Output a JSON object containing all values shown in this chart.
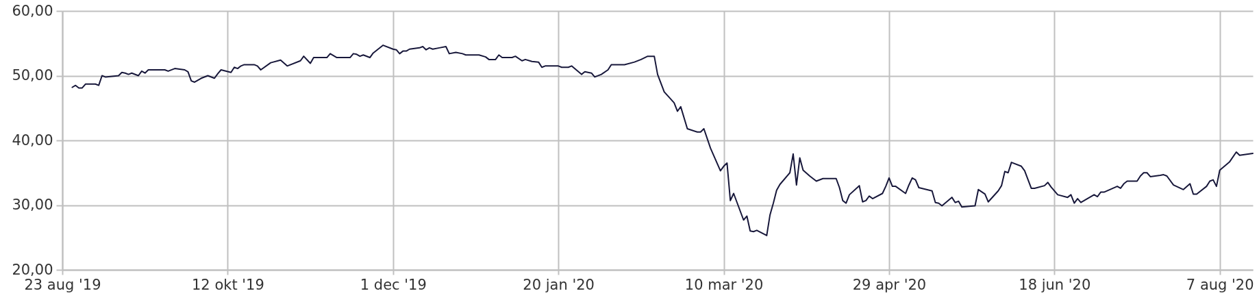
{
  "chart_data": {
    "type": "line",
    "x": [
      "2019-08-26",
      "2019-08-27",
      "2019-08-28",
      "2019-08-29",
      "2019-08-30",
      "2019-09-02",
      "2019-09-03",
      "2019-09-04",
      "2019-09-05",
      "2019-09-09",
      "2019-09-10",
      "2019-09-11",
      "2019-09-12",
      "2019-09-13",
      "2019-09-15",
      "2019-09-16",
      "2019-09-17",
      "2019-09-18",
      "2019-09-23",
      "2019-09-24",
      "2019-09-26",
      "2019-09-29",
      "2019-09-30",
      "2019-10-01",
      "2019-10-02",
      "2019-10-04",
      "2019-10-06",
      "2019-10-08",
      "2019-10-09",
      "2019-10-10",
      "2019-10-13",
      "2019-10-14",
      "2019-10-15",
      "2019-10-16",
      "2019-10-17",
      "2019-10-20",
      "2019-10-21",
      "2019-10-22",
      "2019-10-25",
      "2019-10-28",
      "2019-10-30",
      "2019-11-03",
      "2019-11-04",
      "2019-11-06",
      "2019-11-07",
      "2019-11-11",
      "2019-11-12",
      "2019-11-14",
      "2019-11-18",
      "2019-11-19",
      "2019-11-20",
      "2019-11-21",
      "2019-11-22",
      "2019-11-24",
      "2019-11-25",
      "2019-11-28",
      "2019-12-01",
      "2019-12-02",
      "2019-12-03",
      "2019-12-04",
      "2019-12-05",
      "2019-12-06",
      "2019-12-09",
      "2019-12-10",
      "2019-12-11",
      "2019-12-12",
      "2019-12-13",
      "2019-12-15",
      "2019-12-17",
      "2019-12-18",
      "2019-12-20",
      "2019-12-22",
      "2019-12-23",
      "2019-12-27",
      "2019-12-29",
      "2019-12-30",
      "2020-01-01",
      "2020-01-02",
      "2020-01-03",
      "2020-01-06",
      "2020-01-07",
      "2020-01-09",
      "2020-01-10",
      "2020-01-12",
      "2020-01-14",
      "2020-01-15",
      "2020-01-16",
      "2020-01-20",
      "2020-01-21",
      "2020-01-23",
      "2020-01-24",
      "2020-01-27",
      "2020-01-28",
      "2020-01-30",
      "2020-01-31",
      "2020-02-02",
      "2020-02-04",
      "2020-02-05",
      "2020-02-09",
      "2020-02-12",
      "2020-02-14",
      "2020-02-16",
      "2020-02-18",
      "2020-02-19",
      "2020-02-21",
      "2020-02-24",
      "2020-02-25",
      "2020-02-26",
      "2020-02-28",
      "2020-03-02",
      "2020-03-03",
      "2020-03-04",
      "2020-03-06",
      "2020-03-09",
      "2020-03-10",
      "2020-03-11",
      "2020-03-12",
      "2020-03-13",
      "2020-03-16",
      "2020-03-17",
      "2020-03-18",
      "2020-03-19",
      "2020-03-20",
      "2020-03-23",
      "2020-03-24",
      "2020-03-25",
      "2020-03-26",
      "2020-03-27",
      "2020-03-30",
      "2020-03-31",
      "2020-04-01",
      "2020-04-02",
      "2020-04-03",
      "2020-04-05",
      "2020-04-07",
      "2020-04-09",
      "2020-04-13",
      "2020-04-14",
      "2020-04-15",
      "2020-04-16",
      "2020-04-17",
      "2020-04-20",
      "2020-04-21",
      "2020-04-22",
      "2020-04-23",
      "2020-04-24",
      "2020-04-27",
      "2020-04-28",
      "2020-04-29",
      "2020-04-30",
      "2020-05-01",
      "2020-05-04",
      "2020-05-05",
      "2020-05-06",
      "2020-05-07",
      "2020-05-08",
      "2020-05-12",
      "2020-05-13",
      "2020-05-14",
      "2020-05-15",
      "2020-05-18",
      "2020-05-19",
      "2020-05-20",
      "2020-05-21",
      "2020-05-25",
      "2020-05-26",
      "2020-05-28",
      "2020-05-29",
      "2020-06-01",
      "2020-06-02",
      "2020-06-03",
      "2020-06-04",
      "2020-06-05",
      "2020-06-08",
      "2020-06-09",
      "2020-06-11",
      "2020-06-12",
      "2020-06-15",
      "2020-06-16",
      "2020-06-17",
      "2020-06-19",
      "2020-06-22",
      "2020-06-23",
      "2020-06-24",
      "2020-06-25",
      "2020-06-26",
      "2020-06-30",
      "2020-07-01",
      "2020-07-02",
      "2020-07-03",
      "2020-07-07",
      "2020-07-08",
      "2020-07-09",
      "2020-07-10",
      "2020-07-13",
      "2020-07-14",
      "2020-07-15",
      "2020-07-16",
      "2020-07-17",
      "2020-07-20",
      "2020-07-21",
      "2020-07-22",
      "2020-07-24",
      "2020-07-27",
      "2020-07-29",
      "2020-07-30",
      "2020-07-31",
      "2020-08-03",
      "2020-08-04",
      "2020-08-05",
      "2020-08-06",
      "2020-08-07",
      "2020-08-10",
      "2020-08-12",
      "2020-08-13",
      "2020-08-17"
    ],
    "series": [
      {
        "color": "#17173a",
        "values": [
          48.2,
          48.5,
          48.1,
          48.1,
          48.7,
          48.7,
          48.5,
          50.0,
          49.8,
          50.0,
          50.5,
          50.4,
          50.2,
          50.4,
          50.0,
          50.7,
          50.4,
          50.9,
          50.9,
          50.7,
          51.1,
          50.9,
          50.6,
          49.2,
          49.0,
          49.6,
          50.0,
          49.6,
          50.3,
          50.9,
          50.5,
          51.3,
          51.1,
          51.5,
          51.7,
          51.7,
          51.5,
          50.9,
          52.0,
          52.4,
          51.5,
          52.3,
          53.0,
          51.9,
          52.8,
          52.8,
          53.4,
          52.8,
          52.8,
          53.4,
          53.3,
          53.0,
          53.2,
          52.8,
          53.5,
          54.7,
          54.1,
          54.0,
          53.4,
          53.8,
          53.8,
          54.1,
          54.3,
          54.5,
          54.0,
          54.3,
          54.1,
          54.3,
          54.5,
          53.4,
          53.6,
          53.4,
          53.2,
          53.2,
          52.9,
          52.5,
          52.5,
          53.2,
          52.8,
          52.8,
          53.0,
          52.3,
          52.5,
          52.2,
          52.1,
          51.3,
          51.5,
          51.5,
          51.3,
          51.3,
          51.5,
          50.2,
          50.6,
          50.4,
          49.8,
          50.2,
          50.9,
          51.7,
          51.7,
          52.1,
          52.5,
          53.0,
          53.0,
          50.2,
          47.5,
          45.8,
          44.5,
          45.2,
          41.8,
          41.3,
          41.3,
          41.8,
          38.8,
          35.3,
          36.0,
          36.5,
          30.7,
          31.8,
          27.7,
          28.3,
          26.0,
          25.9,
          26.1,
          25.3,
          28.5,
          30.3,
          32.3,
          33.2,
          35.0,
          37.9,
          33.1,
          37.3,
          35.4,
          34.5,
          33.7,
          34.1,
          34.1,
          32.7,
          30.7,
          30.3,
          31.6,
          33.0,
          30.5,
          30.7,
          31.4,
          31.0,
          31.8,
          32.9,
          34.2,
          32.9,
          32.9,
          31.8,
          33.1,
          34.2,
          33.9,
          32.7,
          32.2,
          30.4,
          30.3,
          29.9,
          31.2,
          30.4,
          30.6,
          29.7,
          29.9,
          32.4,
          31.7,
          30.5,
          32.2,
          33.0,
          35.2,
          35.0,
          36.6,
          36.0,
          35.3,
          32.6,
          32.6,
          33.0,
          33.5,
          32.8,
          31.6,
          31.2,
          31.6,
          30.3,
          31.0,
          30.4,
          31.6,
          31.3,
          32.0,
          32.0,
          32.9,
          32.6,
          33.3,
          33.7,
          33.7,
          34.5,
          35.0,
          35.0,
          34.4,
          34.6,
          34.7,
          34.5,
          33.1,
          32.4,
          33.3,
          31.7,
          31.7,
          32.9,
          33.7,
          33.9,
          32.9,
          35.4,
          36.7,
          38.2,
          37.7,
          38.0
        ]
      }
    ],
    "xlim": [
      "2019-08-23",
      "2020-08-17"
    ],
    "xticks": [
      {
        "value": "2019-08-23",
        "label": "23 aug '19"
      },
      {
        "value": "2019-10-12",
        "label": "12 okt '19"
      },
      {
        "value": "2019-12-01",
        "label": "1 dec '19"
      },
      {
        "value": "2020-01-20",
        "label": "20 jan '20"
      },
      {
        "value": "2020-03-10",
        "label": "10 mar '20"
      },
      {
        "value": "2020-04-29",
        "label": "29 apr '20"
      },
      {
        "value": "2020-06-18",
        "label": "18 jun '20"
      },
      {
        "value": "2020-08-07",
        "label": "7 aug '20"
      }
    ],
    "ylim": [
      20,
      60
    ],
    "yticks": [
      {
        "value": 20,
        "label": "20,00"
      },
      {
        "value": 30,
        "label": "30,00"
      },
      {
        "value": 40,
        "label": "40,00"
      },
      {
        "value": 50,
        "label": "50,00"
      },
      {
        "value": 60,
        "label": "60,00"
      }
    ],
    "grid": true,
    "line_style": "solid"
  }
}
